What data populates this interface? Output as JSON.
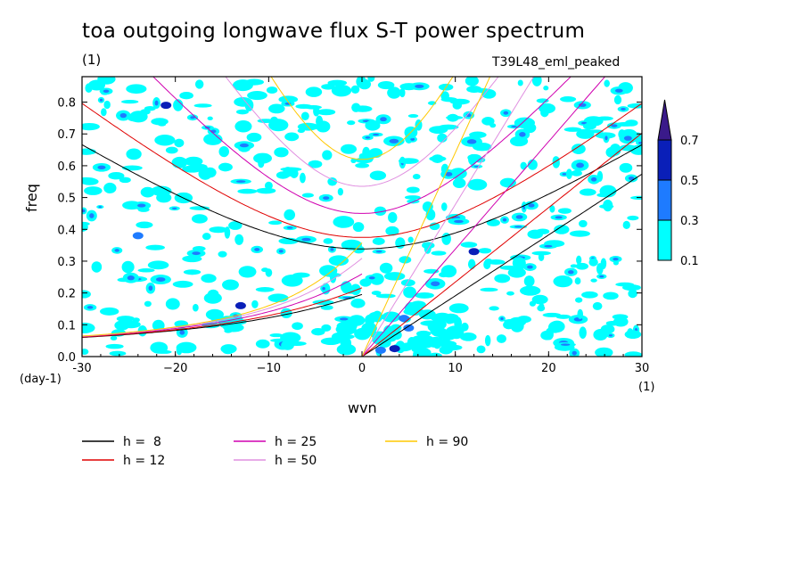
{
  "title": "toa outgoing longwave flux S-T power spectrum",
  "title_units": "(1)",
  "run_label": "T39L48_eml_peaked",
  "chart_data": {
    "type": "contour",
    "title": "toa outgoing longwave flux S-T power spectrum",
    "xlabel": "wvn",
    "ylabel": "freq",
    "x_units": "(1)",
    "y_units": "(day-1)",
    "xlim": [
      -30,
      30
    ],
    "ylim": [
      0,
      0.88
    ],
    "xticks": [
      -30,
      -20,
      -10,
      0,
      10,
      20,
      30
    ],
    "xtick_labels": [
      "-30",
      "−20",
      "−10",
      "0",
      "10",
      "20",
      "30"
    ],
    "yticks": [
      0.0,
      0.1,
      0.2,
      0.3,
      0.4,
      0.5,
      0.6,
      0.7,
      0.8
    ],
    "ytick_labels": [
      "0.0",
      "0.1",
      "0.2",
      "0.3",
      "0.4",
      "0.5",
      "0.6",
      "0.7",
      "0.8"
    ],
    "colorbar": {
      "levels": [
        0.1,
        0.3,
        0.5,
        0.7
      ],
      "labels": [
        "0.1",
        "0.3",
        "0.5",
        "0.7"
      ],
      "colors": [
        "#00ffff",
        "#1e7bff",
        "#0a1fb8",
        "#3a1a8a"
      ]
    },
    "dispersion_curves": [
      {
        "name": "h =  8",
        "h": 8,
        "color": "#000000"
      },
      {
        "name": "h = 12",
        "h": 12,
        "color": "#e00000"
      },
      {
        "name": "h = 25",
        "h": 25,
        "color": "#d000b0"
      },
      {
        "name": "h = 50",
        "h": 50,
        "color": "#e090e0"
      },
      {
        "name": "h = 90",
        "h": 90,
        "color": "#ffc800"
      }
    ]
  }
}
